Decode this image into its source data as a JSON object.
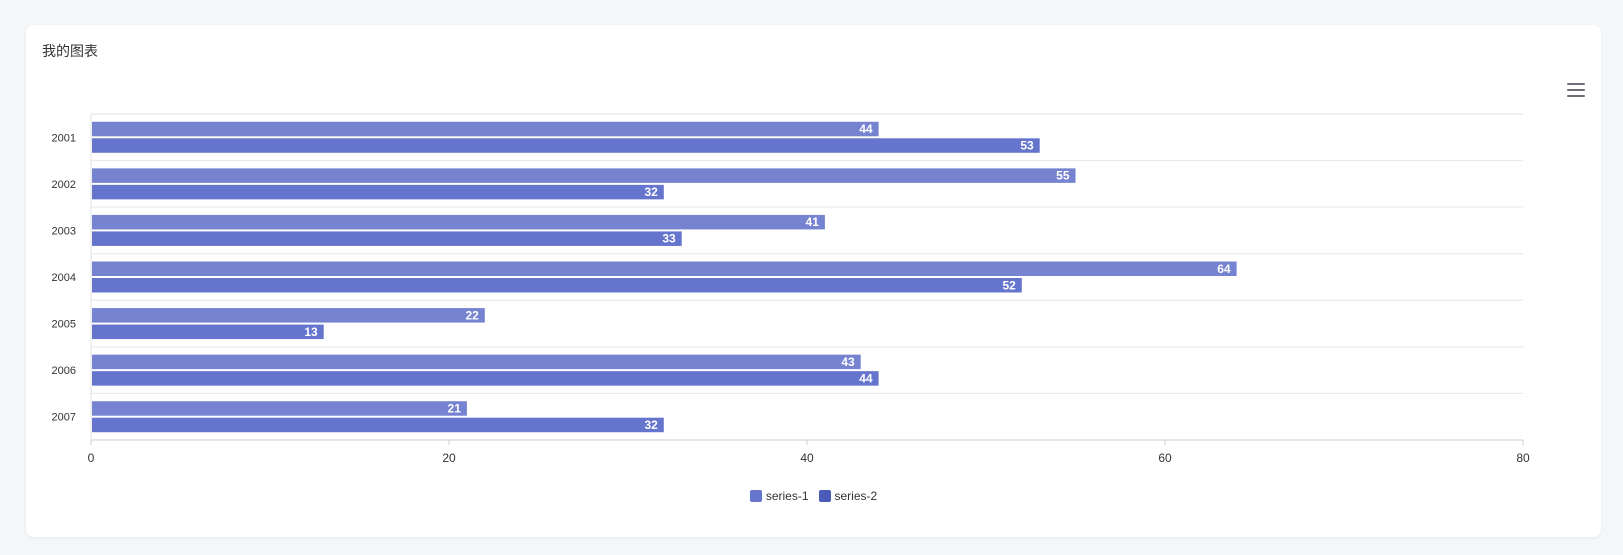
{
  "card": {
    "title": "我的图表"
  },
  "toolbar": {
    "menu_icon": "menu-icon"
  },
  "chart_data": {
    "type": "bar",
    "orientation": "horizontal",
    "categories": [
      "2001",
      "2002",
      "2003",
      "2004",
      "2005",
      "2006",
      "2007"
    ],
    "series": [
      {
        "name": "series-1",
        "values": [
          44,
          55,
          41,
          64,
          22,
          43,
          21
        ],
        "color": "#7683d0"
      },
      {
        "name": "series-2",
        "values": [
          53,
          32,
          33,
          52,
          13,
          44,
          32
        ],
        "color": "#6574cd"
      }
    ],
    "xlim": [
      0,
      80
    ],
    "x_ticks": [
      "0",
      "20",
      "40",
      "60",
      "80"
    ],
    "data_labels": true,
    "grid": true,
    "legend_position": "bottom",
    "legend_swatch_colors": [
      "#6574cd",
      "#4c5ab8"
    ]
  }
}
